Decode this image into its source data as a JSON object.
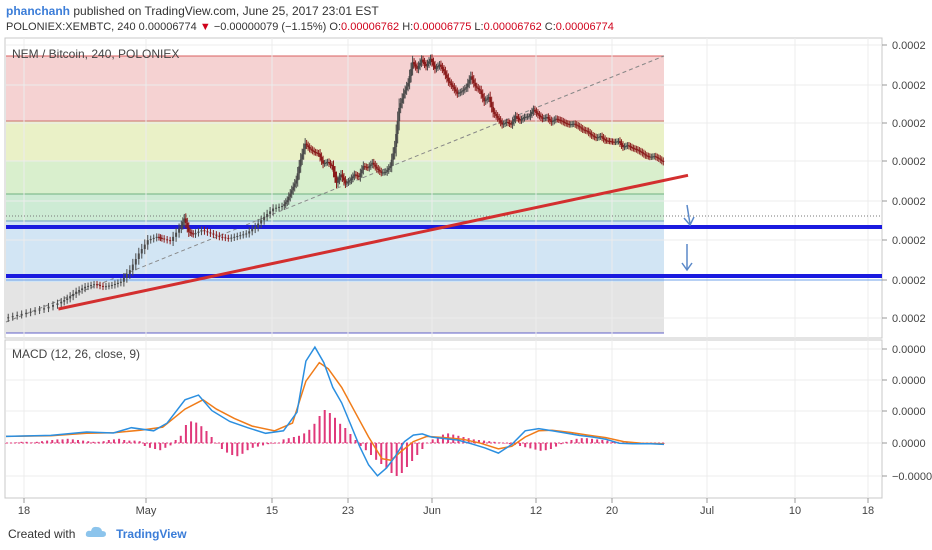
{
  "header": {
    "author": "phanchanh",
    "published_text": "published on TradingView.com, June 25, 2017 23:01 EST"
  },
  "ticker": {
    "symbol": "POLONIEX:XEMBTC, 240",
    "last": "0.00006774",
    "change_arrow": "▼",
    "change": "−0.00000079 (−1.15%)",
    "open_label": "O:",
    "open": "0.00006762",
    "high_label": "H:",
    "high": "0.00006775",
    "low_label": "L:",
    "low": "0.00006762",
    "close_label": "C:",
    "close": "0.00006774"
  },
  "chart_data": [
    {
      "type": "line",
      "title": "NEM / Bitcoin, 240, POLONIEX",
      "xlabel": "",
      "ylabel": "",
      "x_tick_labels": [
        "18",
        "May",
        "15",
        "23",
        "Jun",
        "12",
        "20",
        "Jul",
        "10",
        "18"
      ],
      "y_tick_labels": [
        "0.0002",
        "0.0002",
        "0.0002",
        "0.0002",
        "0.0002",
        "0.0002",
        "0.0002",
        "0.0002"
      ],
      "series": [
        {
          "values": [
            [
              0,
              0.2
            ],
            [
              3,
              0.6
            ],
            [
              6,
              1.0
            ],
            [
              9,
              1.4
            ],
            [
              12,
              2.0
            ],
            [
              14,
              2.6
            ],
            [
              16,
              3.4
            ],
            [
              18,
              4.0
            ],
            [
              20,
              4.3
            ],
            [
              22,
              4.0
            ],
            [
              24,
              4.2
            ],
            [
              26,
              4.6
            ],
            [
              28,
              6.0
            ],
            [
              30,
              8.0
            ],
            [
              32,
              9.6
            ],
            [
              34,
              10.0
            ],
            [
              35,
              9.8
            ],
            [
              37,
              9.5
            ],
            [
              39,
              11.0
            ],
            [
              40,
              12.2
            ],
            [
              41,
              10.6
            ],
            [
              42,
              10.3
            ],
            [
              44,
              10.8
            ],
            [
              46,
              10.4
            ],
            [
              48,
              10.0
            ],
            [
              50,
              9.8
            ],
            [
              52,
              10.1
            ],
            [
              54,
              10.4
            ],
            [
              56,
              11.2
            ],
            [
              58,
              12.4
            ],
            [
              60,
              13.4
            ],
            [
              62,
              13.7
            ],
            [
              63,
              14.4
            ],
            [
              64,
              15.6
            ],
            [
              65,
              16.8
            ],
            [
              66,
              19.3
            ],
            [
              67,
              21.2
            ],
            [
              68,
              20.6
            ],
            [
              69,
              20.2
            ],
            [
              70,
              20.0
            ],
            [
              71,
              18.8
            ],
            [
              72,
              19.0
            ],
            [
              73,
              18.5
            ],
            [
              74,
              16.5
            ],
            [
              75,
              17.5
            ],
            [
              76,
              16.4
            ],
            [
              77,
              16.8
            ],
            [
              78,
              17.5
            ],
            [
              79,
              17.2
            ],
            [
              80,
              18.5
            ],
            [
              81,
              18.3
            ],
            [
              82,
              18.9
            ],
            [
              83,
              18.2
            ],
            [
              84,
              17.7
            ],
            [
              85,
              17.8
            ],
            [
              86,
              18.5
            ],
            [
              87,
              20.8
            ],
            [
              88,
              25.5
            ],
            [
              89,
              27.2
            ],
            [
              90,
              28.5
            ],
            [
              91,
              31.0
            ],
            [
              92,
              30.2
            ],
            [
              93,
              31.3
            ],
            [
              94,
              30.5
            ],
            [
              95,
              31.4
            ],
            [
              96,
              30.2
            ],
            [
              97,
              30.7
            ],
            [
              98,
              29.9
            ],
            [
              99,
              28.7
            ],
            [
              100,
              28.0
            ],
            [
              101,
              27.2
            ],
            [
              102,
              27.5
            ],
            [
              103,
              28.0
            ],
            [
              104,
              29.3
            ],
            [
              105,
              28.1
            ],
            [
              106,
              27.6
            ],
            [
              107,
              26.3
            ],
            [
              108,
              26.8
            ],
            [
              109,
              25.0
            ],
            [
              110,
              24.3
            ],
            [
              111,
              23.5
            ],
            [
              112,
              23.8
            ],
            [
              113,
              23.5
            ],
            [
              114,
              24.5
            ],
            [
              115,
              24.0
            ],
            [
              116,
              24.4
            ],
            [
              117,
              24.5
            ],
            [
              118,
              25.3
            ],
            [
              119,
              24.7
            ],
            [
              120,
              24.2
            ],
            [
              121,
              24.4
            ],
            [
              122,
              23.8
            ],
            [
              123,
              24.2
            ],
            [
              124,
              24.0
            ],
            [
              125,
              23.7
            ],
            [
              126,
              23.5
            ],
            [
              127,
              23.6
            ],
            [
              128,
              23.3
            ],
            [
              129,
              22.9
            ],
            [
              130,
              22.7
            ],
            [
              131,
              22.2
            ],
            [
              132,
              21.9
            ],
            [
              133,
              22.1
            ],
            [
              134,
              21.6
            ],
            [
              135,
              21.5
            ],
            [
              136,
              21.4
            ],
            [
              137,
              21.5
            ],
            [
              138,
              20.8
            ],
            [
              139,
              21.0
            ],
            [
              140,
              20.7
            ],
            [
              141,
              20.5
            ],
            [
              142,
              20.2
            ],
            [
              143,
              19.8
            ],
            [
              144,
              19.6
            ],
            [
              145,
              19.7
            ],
            [
              146,
              19.4
            ],
            [
              147,
              19.0
            ]
          ]
        },
        {
          "values": [
            [
              5,
              1.2
            ],
            [
              147,
              18.0
            ]
          ]
        }
      ]
    },
    {
      "type": "bar",
      "title": "MACD (12, 26, close, 9)",
      "xlabel": "",
      "ylabel": "",
      "y_tick_labels": [
        "0.0000",
        "0.0000",
        "0.0000",
        "0.0000",
        "−0.0000"
      ],
      "series": [
        {
          "name": "MACD",
          "values": [
            [
              0,
              0.02
            ],
            [
              10,
              0.05
            ],
            [
              18,
              0.16
            ],
            [
              24,
              0.13
            ],
            [
              28,
              0.3
            ],
            [
              33,
              0.2
            ],
            [
              36,
              0.45
            ],
            [
              40,
              1.2
            ],
            [
              43,
              1.35
            ],
            [
              46,
              0.85
            ],
            [
              50,
              0.5
            ],
            [
              54,
              0.3
            ],
            [
              58,
              0.12
            ],
            [
              62,
              0.2
            ],
            [
              65,
              0.8
            ],
            [
              67,
              2.45
            ],
            [
              69,
              2.9
            ],
            [
              71,
              2.4
            ],
            [
              73,
              1.6
            ],
            [
              75,
              1.1
            ],
            [
              77,
              0.4
            ],
            [
              79,
              -0.3
            ],
            [
              81,
              -0.9
            ],
            [
              83,
              -1.25
            ],
            [
              85,
              -1.0
            ],
            [
              87,
              -0.62
            ],
            [
              89,
              -0.15
            ],
            [
              91,
              0.06
            ],
            [
              93,
              0.1
            ],
            [
              95,
              0.0
            ],
            [
              98,
              -0.05
            ],
            [
              101,
              -0.1
            ],
            [
              104,
              -0.22
            ],
            [
              107,
              -0.35
            ],
            [
              110,
              -0.52
            ],
            [
              113,
              -0.24
            ],
            [
              116,
              0.2
            ],
            [
              119,
              0.27
            ],
            [
              122,
              0.2
            ],
            [
              125,
              0.13
            ],
            [
              128,
              0.05
            ],
            [
              131,
              0.0
            ],
            [
              134,
              -0.07
            ],
            [
              137,
              -0.2
            ],
            [
              140,
              -0.22
            ],
            [
              144,
              -0.22
            ],
            [
              147,
              -0.24
            ]
          ]
        },
        {
          "name": "Signal",
          "values": [
            [
              0,
              0.02
            ],
            [
              10,
              0.04
            ],
            [
              18,
              0.12
            ],
            [
              24,
              0.14
            ],
            [
              30,
              0.22
            ],
            [
              35,
              0.32
            ],
            [
              40,
              0.9
            ],
            [
              44,
              1.2
            ],
            [
              47,
              0.9
            ],
            [
              51,
              0.6
            ],
            [
              55,
              0.35
            ],
            [
              60,
              0.2
            ],
            [
              64,
              0.45
            ],
            [
              67,
              1.8
            ],
            [
              70,
              2.4
            ],
            [
              72,
              2.2
            ],
            [
              75,
              1.6
            ],
            [
              78,
              0.8
            ],
            [
              81,
              0.0
            ],
            [
              84,
              -0.7
            ],
            [
              86,
              -0.75
            ],
            [
              88,
              -0.5
            ],
            [
              91,
              -0.15
            ],
            [
              94,
              0.02
            ],
            [
              98,
              -0.02
            ],
            [
              102,
              -0.07
            ],
            [
              106,
              -0.2
            ],
            [
              110,
              -0.38
            ],
            [
              113,
              -0.3
            ],
            [
              116,
              0.0
            ],
            [
              119,
              0.2
            ],
            [
              122,
              0.22
            ],
            [
              126,
              0.15
            ],
            [
              130,
              0.06
            ],
            [
              134,
              -0.02
            ],
            [
              138,
              -0.15
            ],
            [
              142,
              -0.2
            ],
            [
              147,
              -0.22
            ]
          ]
        },
        {
          "name": "Histogram",
          "values": [
            0.0,
            0.0,
            0.01,
            0.02,
            0.02,
            0.01,
            0.02,
            0.03,
            0.04,
            0.05,
            0.06,
            0.06,
            0.07,
            0.06,
            0.05,
            0.04,
            0.03,
            0.02,
            0.02,
            0.03,
            0.05,
            0.06,
            0.07,
            0.05,
            0.04,
            0.04,
            0.03,
            -0.05,
            -0.08,
            -0.1,
            -0.12,
            -0.08,
            -0.04,
            0.05,
            0.12,
            0.3,
            0.36,
            0.34,
            0.28,
            0.2,
            0.1,
            0.0,
            -0.1,
            -0.16,
            -0.2,
            -0.22,
            -0.18,
            -0.12,
            -0.08,
            -0.06,
            -0.04,
            -0.02,
            -0.01,
            0.0,
            0.06,
            0.08,
            0.1,
            0.12,
            0.16,
            0.22,
            0.32,
            0.45,
            0.55,
            0.5,
            0.42,
            0.32,
            0.25,
            0.15,
            0.05,
            -0.05,
            -0.12,
            -0.2,
            -0.28,
            -0.35,
            -0.42,
            -0.5,
            -0.55,
            -0.5,
            -0.4,
            -0.3,
            -0.2,
            -0.1,
            0.0,
            0.06,
            0.1,
            0.14,
            0.16,
            0.14,
            0.12,
            0.1,
            0.08,
            0.06,
            0.05,
            0.04,
            0.03,
            0.02,
            0.01,
            0.0,
            -0.02,
            -0.03,
            -0.05,
            -0.07,
            -0.09,
            -0.11,
            -0.13,
            -0.12,
            -0.1,
            -0.06,
            -0.02,
            0.02,
            0.05,
            0.07,
            0.08,
            0.08,
            0.07,
            0.06,
            0.05,
            0.04,
            0.03,
            0.02,
            0.01,
            0.0,
            -0.01,
            -0.02,
            -0.02,
            -0.02,
            -0.01,
            0.0,
            0.0
          ]
        }
      ]
    }
  ],
  "footer": {
    "created_with": "Created with",
    "brand": "TradingView"
  },
  "colors": {
    "accent": "#3b7dd8",
    "trendline": "#d32f2f",
    "support": "#1a1adf",
    "candle_up": "#4a4a4a",
    "candle_down": "#8a1a1a",
    "macd_line": "#2b8fe0",
    "signal_line": "#f07c19",
    "histogram": "#e0387a"
  }
}
